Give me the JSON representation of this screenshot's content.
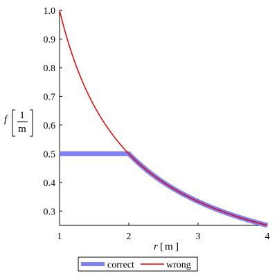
{
  "chart_data": {
    "type": "line",
    "title": "",
    "xlabel": {
      "var": "r",
      "unit": "m"
    },
    "ylabel": {
      "var": "f",
      "unit_num": "1",
      "unit_den": "m"
    },
    "xlim": [
      1,
      4
    ],
    "ylim": [
      0.25,
      1.0
    ],
    "x_ticks": [
      "1",
      "2",
      "3",
      "4"
    ],
    "y_ticks": [
      "0.3",
      "0.4",
      "0.5",
      "0.6",
      "0.7",
      "0.8",
      "0.9",
      "1.0"
    ],
    "grid": false,
    "legend_position": "bottom",
    "series": [
      {
        "name": "correct",
        "color": "#8080f0",
        "x": [
          1,
          2,
          2.2,
          2.4,
          2.6,
          2.8,
          3,
          3.2,
          3.4,
          3.6,
          3.8,
          4
        ],
        "y": [
          0.5,
          0.5,
          0.4545,
          0.4167,
          0.3846,
          0.3571,
          0.3333,
          0.3125,
          0.2941,
          0.2778,
          0.2632,
          0.25
        ]
      },
      {
        "name": "wrong",
        "color": "#e00000",
        "x": [
          1,
          1.1,
          1.2,
          1.3,
          1.4,
          1.5,
          1.6,
          1.7,
          1.8,
          1.9,
          2,
          2.2,
          2.4,
          2.6,
          2.8,
          3,
          3.2,
          3.4,
          3.6,
          3.8,
          4
        ],
        "y": [
          1.0,
          0.9091,
          0.8333,
          0.7692,
          0.7143,
          0.6667,
          0.625,
          0.5882,
          0.5556,
          0.5263,
          0.5,
          0.4545,
          0.4167,
          0.3846,
          0.3571,
          0.3333,
          0.3125,
          0.2941,
          0.2778,
          0.2632,
          0.25
        ]
      }
    ]
  }
}
